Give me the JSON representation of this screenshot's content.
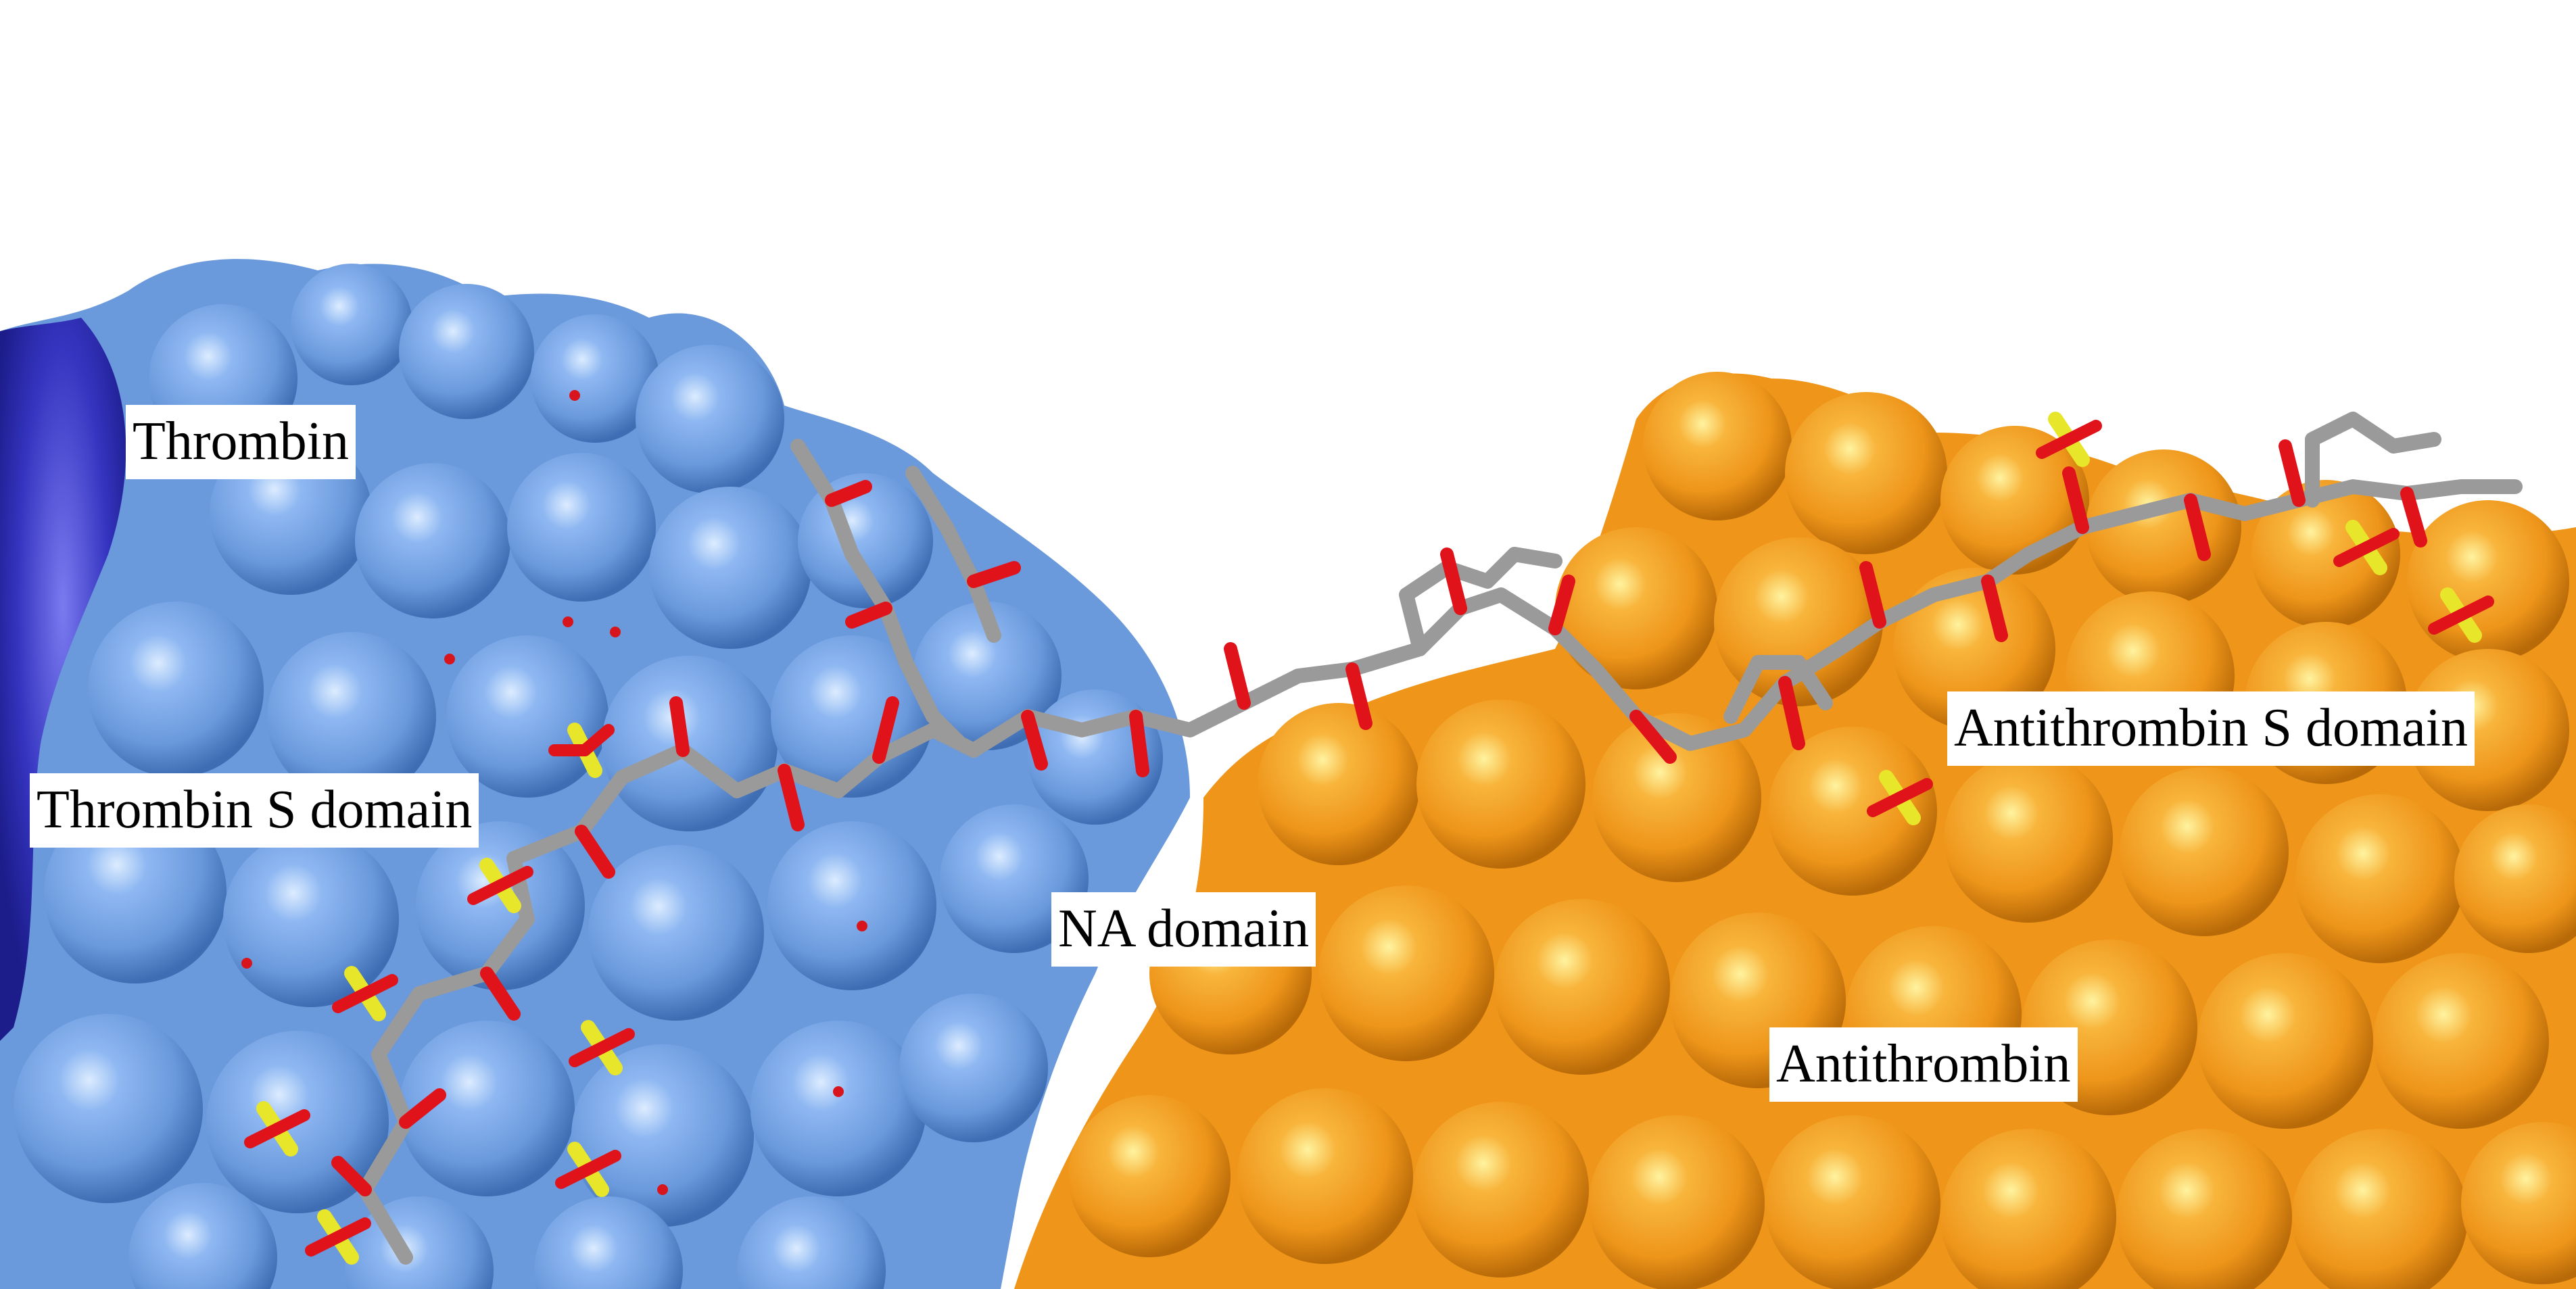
{
  "labels": {
    "thrombin": "Thrombin",
    "thrombin_s_domain": "Thrombin S domain",
    "na_domain": "NA domain",
    "antithrombin_s_domain": "Antithrombin S domain",
    "antithrombin": "Antithrombin"
  },
  "colors": {
    "thrombin_surface": "#6f9fe3",
    "thrombin_dark": "#2f2fb0",
    "antithrombin_surface": "#f29a1e",
    "carbon": "#9a9a9a",
    "oxygen": "#e0121a",
    "sulfur": "#e8e62a"
  }
}
